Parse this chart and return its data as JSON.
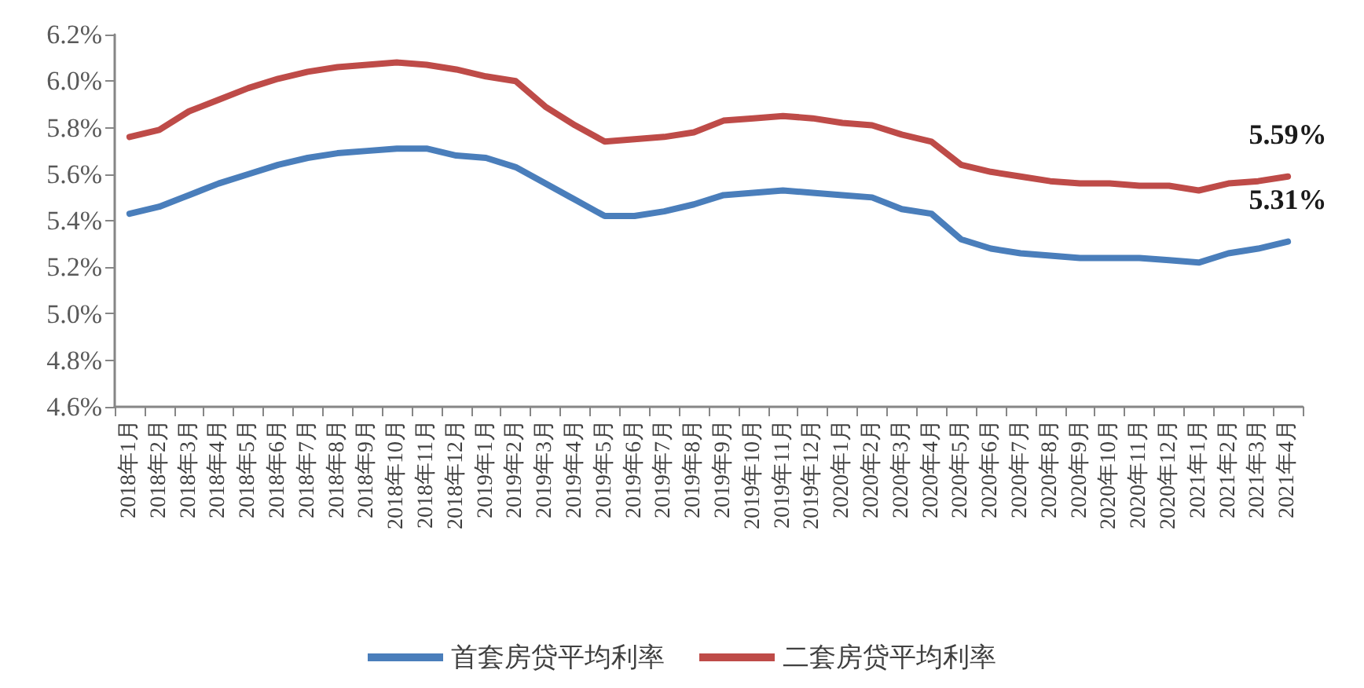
{
  "chart_data": {
    "type": "line",
    "categories": [
      "2018年1月",
      "2018年2月",
      "2018年3月",
      "2018年4月",
      "2018年5月",
      "2018年6月",
      "2018年7月",
      "2018年8月",
      "2018年9月",
      "2018年10月",
      "2018年11月",
      "2018年12月",
      "2019年1月",
      "2019年2月",
      "2019年3月",
      "2019年4月",
      "2019年5月",
      "2019年6月",
      "2019年7月",
      "2019年8月",
      "2019年9月",
      "2019年10月",
      "2019年11月",
      "2019年12月",
      "2020年1月",
      "2020年2月",
      "2020年3月",
      "2020年4月",
      "2020年5月",
      "2020年6月",
      "2020年7月",
      "2020年8月",
      "2020年9月",
      "2020年10月",
      "2020年11月",
      "2020年12月",
      "2021年1月",
      "2021年2月",
      "2021年3月",
      "2021年4月"
    ],
    "series": [
      {
        "name": "首套房贷平均利率",
        "color": "#4a7ebb",
        "values": [
          5.43,
          5.46,
          5.51,
          5.56,
          5.6,
          5.64,
          5.67,
          5.69,
          5.7,
          5.71,
          5.71,
          5.68,
          5.67,
          5.63,
          5.56,
          5.49,
          5.42,
          5.42,
          5.44,
          5.47,
          5.51,
          5.52,
          5.53,
          5.52,
          5.51,
          5.5,
          5.45,
          5.43,
          5.32,
          5.28,
          5.26,
          5.25,
          5.24,
          5.24,
          5.24,
          5.23,
          5.22,
          5.26,
          5.28,
          5.31
        ],
        "value_labels": [
          null,
          null,
          null,
          null,
          null,
          null,
          null,
          null,
          null,
          null,
          null,
          null,
          null,
          null,
          null,
          null,
          null,
          null,
          null,
          null,
          null,
          null,
          null,
          null,
          null,
          null,
          null,
          null,
          null,
          null,
          null,
          null,
          null,
          null,
          null,
          null,
          null,
          null,
          null,
          "5.31%"
        ]
      },
      {
        "name": "二套房贷平均利率",
        "color": "#be4b48",
        "values": [
          5.76,
          5.79,
          5.87,
          5.92,
          5.97,
          6.01,
          6.04,
          6.06,
          6.07,
          6.08,
          6.07,
          6.05,
          6.02,
          6.0,
          5.89,
          5.81,
          5.74,
          5.75,
          5.76,
          5.78,
          5.83,
          5.84,
          5.85,
          5.84,
          5.82,
          5.81,
          5.77,
          5.74,
          5.64,
          5.61,
          5.59,
          5.57,
          5.56,
          5.56,
          5.55,
          5.55,
          5.53,
          5.56,
          5.57,
          5.59
        ],
        "value_labels": [
          null,
          null,
          null,
          null,
          null,
          null,
          null,
          null,
          null,
          null,
          null,
          null,
          null,
          null,
          null,
          null,
          null,
          null,
          null,
          null,
          null,
          null,
          null,
          null,
          null,
          null,
          null,
          null,
          null,
          null,
          null,
          null,
          null,
          null,
          null,
          null,
          null,
          null,
          null,
          "5.59%"
        ]
      }
    ],
    "ylim": [
      4.6,
      6.2
    ],
    "yticks": [
      {
        "value": 4.6,
        "label": "4.6%"
      },
      {
        "value": 4.8,
        "label": "4.8%"
      },
      {
        "value": 5.0,
        "label": "5.0%"
      },
      {
        "value": 5.2,
        "label": "5.2%"
      },
      {
        "value": 5.4,
        "label": "5.4%"
      },
      {
        "value": 5.6,
        "label": "5.6%"
      },
      {
        "value": 5.8,
        "label": "5.8%"
      },
      {
        "value": 6.0,
        "label": "6.0%"
      },
      {
        "value": 6.2,
        "label": "6.2%"
      }
    ],
    "grid": false,
    "legend": "bottom",
    "marker": "none"
  }
}
